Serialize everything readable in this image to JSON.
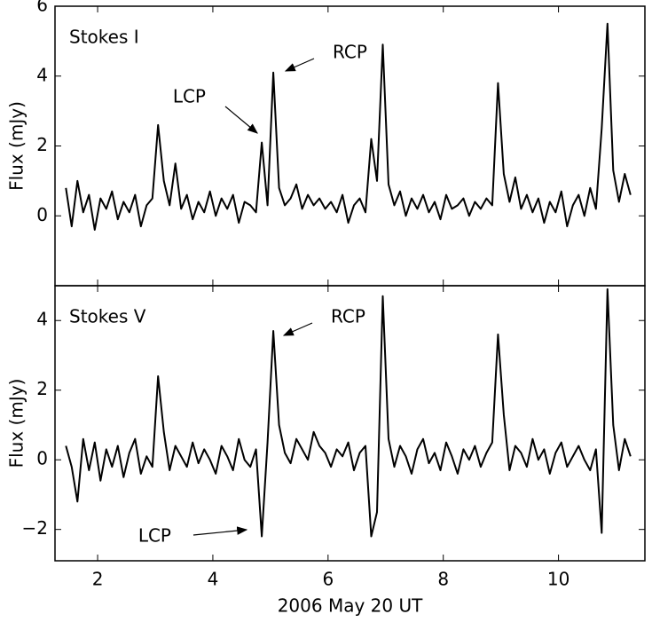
{
  "chart_data": [
    {
      "type": "line",
      "title": "Stokes I",
      "ylabel": "Flux (mJy)",
      "annotations": [
        "RCP",
        "LCP"
      ],
      "xlim": [
        1.26,
        11.5
      ],
      "ylim": [
        -2,
        6
      ],
      "yticks": [
        0,
        2,
        4,
        6
      ],
      "color": "#000000",
      "x": [
        1.45,
        1.55,
        1.65,
        1.75,
        1.85,
        1.95,
        2.05,
        2.15,
        2.25,
        2.35,
        2.45,
        2.55,
        2.65,
        2.75,
        2.85,
        2.95,
        3.05,
        3.15,
        3.25,
        3.35,
        3.45,
        3.55,
        3.65,
        3.75,
        3.85,
        3.95,
        4.05,
        4.15,
        4.25,
        4.35,
        4.45,
        4.55,
        4.65,
        4.75,
        4.85,
        4.95,
        5.05,
        5.15,
        5.25,
        5.35,
        5.45,
        5.55,
        5.65,
        5.75,
        5.85,
        5.95,
        6.05,
        6.15,
        6.25,
        6.35,
        6.45,
        6.55,
        6.65,
        6.75,
        6.85,
        6.95,
        7.05,
        7.15,
        7.25,
        7.35,
        7.45,
        7.55,
        7.65,
        7.75,
        7.85,
        7.95,
        8.05,
        8.15,
        8.25,
        8.35,
        8.45,
        8.55,
        8.65,
        8.75,
        8.85,
        8.95,
        9.05,
        9.15,
        9.25,
        9.35,
        9.45,
        9.55,
        9.65,
        9.75,
        9.85,
        9.95,
        10.05,
        10.15,
        10.25,
        10.35,
        10.45,
        10.55,
        10.65,
        10.75,
        10.85,
        10.95,
        11.05,
        11.15,
        11.25
      ],
      "values": [
        0.8,
        -0.3,
        1.0,
        0.1,
        0.6,
        -0.4,
        0.5,
        0.2,
        0.7,
        -0.1,
        0.4,
        0.1,
        0.6,
        -0.3,
        0.3,
        0.5,
        2.6,
        1.0,
        0.3,
        1.5,
        0.2,
        0.6,
        -0.1,
        0.4,
        0.1,
        0.7,
        0.0,
        0.5,
        0.2,
        0.6,
        -0.2,
        0.4,
        0.3,
        0.1,
        2.1,
        0.3,
        4.1,
        0.8,
        0.3,
        0.5,
        0.9,
        0.2,
        0.6,
        0.3,
        0.5,
        0.2,
        0.4,
        0.1,
        0.6,
        -0.2,
        0.3,
        0.5,
        0.1,
        2.2,
        1.0,
        4.9,
        0.9,
        0.3,
        0.7,
        0.0,
        0.5,
        0.2,
        0.6,
        0.1,
        0.4,
        -0.1,
        0.6,
        0.2,
        0.3,
        0.5,
        0.0,
        0.4,
        0.2,
        0.5,
        0.3,
        3.8,
        1.2,
        0.4,
        1.1,
        0.2,
        0.6,
        0.1,
        0.5,
        -0.2,
        0.4,
        0.1,
        0.7,
        -0.3,
        0.3,
        0.6,
        0.0,
        0.8,
        0.2,
        2.5,
        5.5,
        1.3,
        0.4,
        1.2,
        0.6
      ]
    },
    {
      "type": "line",
      "title": "Stokes V",
      "ylabel": "Flux (mJy)",
      "xlabel": "2006 May 20 UT",
      "annotations": [
        "RCP",
        "LCP"
      ],
      "xlim": [
        1.26,
        11.5
      ],
      "xticks": [
        2,
        4,
        6,
        8,
        10
      ],
      "ylim": [
        -2.9,
        5
      ],
      "yticks": [
        {
          "value": -2,
          "label": "−2"
        },
        0,
        2,
        4
      ],
      "color": "#000000",
      "x": [
        1.45,
        1.55,
        1.65,
        1.75,
        1.85,
        1.95,
        2.05,
        2.15,
        2.25,
        2.35,
        2.45,
        2.55,
        2.65,
        2.75,
        2.85,
        2.95,
        3.05,
        3.15,
        3.25,
        3.35,
        3.45,
        3.55,
        3.65,
        3.75,
        3.85,
        3.95,
        4.05,
        4.15,
        4.25,
        4.35,
        4.45,
        4.55,
        4.65,
        4.75,
        4.85,
        4.95,
        5.05,
        5.15,
        5.25,
        5.35,
        5.45,
        5.55,
        5.65,
        5.75,
        5.85,
        5.95,
        6.05,
        6.15,
        6.25,
        6.35,
        6.45,
        6.55,
        6.65,
        6.75,
        6.85,
        6.95,
        7.05,
        7.15,
        7.25,
        7.35,
        7.45,
        7.55,
        7.65,
        7.75,
        7.85,
        7.95,
        8.05,
        8.15,
        8.25,
        8.35,
        8.45,
        8.55,
        8.65,
        8.75,
        8.85,
        8.95,
        9.05,
        9.15,
        9.25,
        9.35,
        9.45,
        9.55,
        9.65,
        9.75,
        9.85,
        9.95,
        10.05,
        10.15,
        10.25,
        10.35,
        10.45,
        10.55,
        10.65,
        10.75,
        10.85,
        10.95,
        11.05,
        11.15,
        11.25
      ],
      "values": [
        0.4,
        -0.2,
        -1.2,
        0.6,
        -0.3,
        0.5,
        -0.6,
        0.3,
        -0.2,
        0.4,
        -0.5,
        0.2,
        0.6,
        -0.4,
        0.1,
        -0.2,
        2.4,
        0.8,
        -0.3,
        0.4,
        0.1,
        -0.2,
        0.5,
        -0.1,
        0.3,
        0.0,
        -0.4,
        0.4,
        0.1,
        -0.3,
        0.6,
        0.0,
        -0.2,
        0.3,
        -2.2,
        0.5,
        3.7,
        1.0,
        0.2,
        -0.1,
        0.6,
        0.3,
        0.0,
        0.8,
        0.4,
        0.2,
        -0.2,
        0.3,
        0.1,
        0.5,
        -0.3,
        0.2,
        0.4,
        -2.2,
        -1.5,
        4.7,
        0.6,
        -0.2,
        0.4,
        0.1,
        -0.4,
        0.3,
        0.6,
        -0.1,
        0.2,
        -0.3,
        0.5,
        0.1,
        -0.4,
        0.3,
        0.0,
        0.4,
        -0.2,
        0.2,
        0.5,
        3.6,
        1.3,
        -0.3,
        0.4,
        0.2,
        -0.2,
        0.6,
        0.0,
        0.3,
        -0.4,
        0.2,
        0.5,
        -0.2,
        0.1,
        0.4,
        0.0,
        -0.3,
        0.3,
        -2.1,
        4.9,
        1.0,
        -0.3,
        0.6,
        0.1
      ]
    }
  ]
}
